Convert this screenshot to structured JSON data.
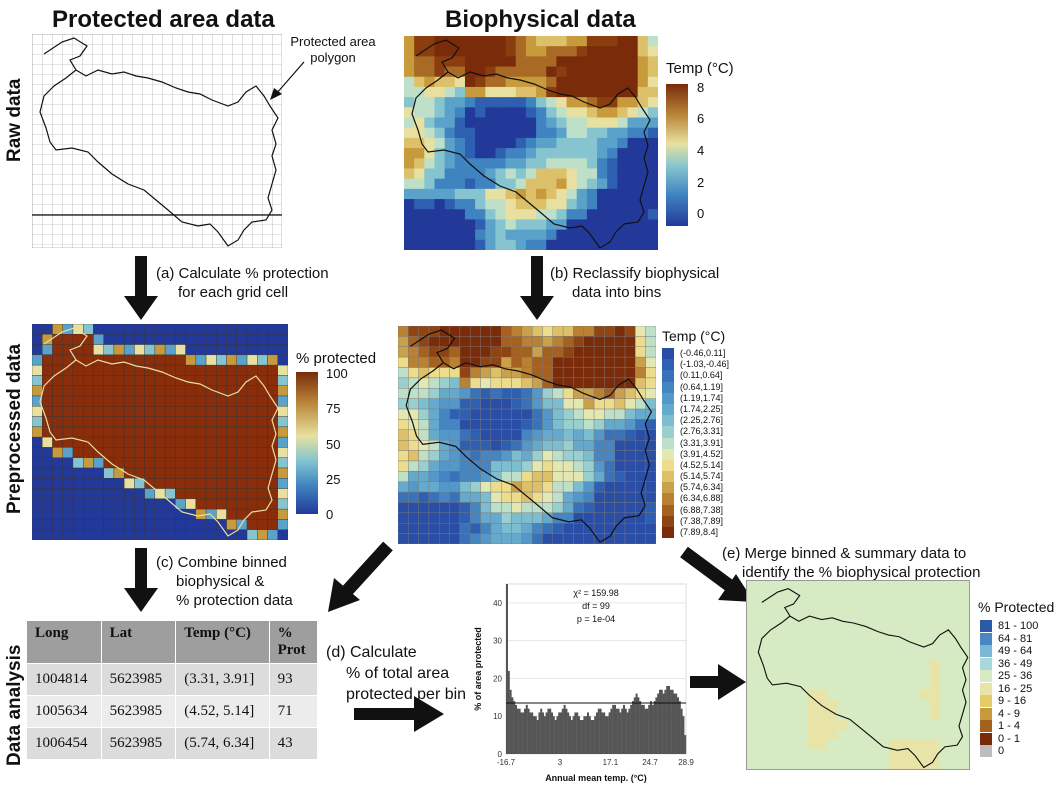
{
  "headers": {
    "left": "Protected area data",
    "right": "Biophysical data"
  },
  "row_labels": {
    "raw": "Raw data",
    "pre": "Preprocessed data",
    "analysis": "Data analysis"
  },
  "annotations": {
    "polygon_line1": "Protected area",
    "polygon_line2": "polygon"
  },
  "steps": {
    "a1": "(a) Calculate % protection",
    "a2": "for each grid cell",
    "b1": "(b) Reclassify biophysical",
    "b2": "data into bins",
    "c1": "(c) Combine binned",
    "c2": "biophysical &",
    "c3": "% protection data",
    "d1": "(d) Calculate",
    "d2": "% of total area",
    "d3": "protected per bin",
    "e1": "(e) Merge binned & summary data to",
    "e2": "identify the % biophysical protection"
  },
  "legend_temp": {
    "title": "Temp (°C)",
    "ticks": [
      "8",
      "6",
      "4",
      "2",
      "0"
    ]
  },
  "legend_protected": {
    "title": "% protected",
    "ticks": [
      "100",
      "75",
      "50",
      "25",
      "0"
    ]
  },
  "legend_bins": {
    "title": "Temp (°C)",
    "items": [
      {
        "label": "(-0.46,0.11]",
        "color": "#2a4ea6"
      },
      {
        "label": "(-1.03,-0.46]",
        "color": "#2f5fb0"
      },
      {
        "label": "(0.11,0.64]",
        "color": "#3a72ba"
      },
      {
        "label": "(0.64,1.19]",
        "color": "#4585c2"
      },
      {
        "label": "(1.19,1.74]",
        "color": "#5498c9"
      },
      {
        "label": "(1.74,2.25]",
        "color": "#65aacd"
      },
      {
        "label": "(2.25,2.76]",
        "color": "#7dbdd0"
      },
      {
        "label": "(2.76,3.31]",
        "color": "#9acfd0"
      },
      {
        "label": "(3.31,3.91]",
        "color": "#bfe0c8"
      },
      {
        "label": "(3.91,4.52]",
        "color": "#e3e8b3"
      },
      {
        "label": "(4.52,5.14]",
        "color": "#ecdc8c"
      },
      {
        "label": "(5.14,5.74]",
        "color": "#ddc06a"
      },
      {
        "label": "(5.74,6.34]",
        "color": "#c9a04c"
      },
      {
        "label": "(6.34,6.88]",
        "color": "#b88134"
      },
      {
        "label": "(6.88,7.38]",
        "color": "#a4611f"
      },
      {
        "label": "(7.38,7.89]",
        "color": "#8f4413"
      },
      {
        "label": "(7.89,8.4]",
        "color": "#7a2c0a"
      }
    ]
  },
  "legend_final": {
    "title": "% Protected",
    "items": [
      {
        "label": "81 - 100",
        "color": "#2b5aa8"
      },
      {
        "label": "64 - 81",
        "color": "#4a86c3"
      },
      {
        "label": "49 - 64",
        "color": "#7bb6d6"
      },
      {
        "label": "36 - 49",
        "color": "#a8d8dc"
      },
      {
        "label": "25 - 36",
        "color": "#d6ebc4"
      },
      {
        "label": "16 - 25",
        "color": "#e8e4a8"
      },
      {
        "label": "9 - 16",
        "color": "#e3cc6a"
      },
      {
        "label": "4 - 9",
        "color": "#c79a3c"
      },
      {
        "label": "1 - 4",
        "color": "#a2611c"
      },
      {
        "label": "0 - 1",
        "color": "#7a2a0a"
      },
      {
        "label": "0",
        "color": "#bdbdbd"
      }
    ]
  },
  "table": {
    "headers": [
      "Long",
      "Lat",
      "Temp (°C)",
      "%\nProt"
    ],
    "rows": [
      [
        "1004814",
        "5623985",
        "(3.31, 3.91]",
        "93"
      ],
      [
        "1005634",
        "5623985",
        "(4.52, 5.14]",
        "71"
      ],
      [
        "1006454",
        "5623985",
        "(5.74, 6.34]",
        "43"
      ]
    ]
  },
  "histogram": {
    "stat_chi": "χ² = 159.98",
    "stat_df": "df = 99",
    "stat_p": "p = 1e-04",
    "ylabel": "% of area protected",
    "xlabel": "Annual mean temp. (°C)",
    "yticks": [
      "40",
      "30",
      "20",
      "10",
      "0"
    ],
    "xticks": [
      "-16.7",
      "3",
      "17.1",
      "24.7",
      "28.9"
    ]
  },
  "chart_data": {
    "type": "bar",
    "title": "",
    "xlabel": "Annual mean temp. (°C)",
    "ylabel": "% of area protected",
    "ylim": [
      0,
      45
    ],
    "xtick_labels": [
      "-16.7",
      "3",
      "17.1",
      "24.7",
      "28.9"
    ],
    "reference_line": 13.5,
    "values": [
      45,
      22,
      17,
      15,
      14,
      13,
      12,
      12,
      11,
      11,
      12,
      13,
      12,
      11,
      11,
      10,
      10,
      9,
      11,
      12,
      11,
      10,
      11,
      12,
      12,
      11,
      10,
      9,
      10,
      11,
      11,
      12,
      13,
      12,
      11,
      10,
      9,
      10,
      11,
      11,
      10,
      9,
      9,
      10,
      10,
      11,
      10,
      9,
      9,
      10,
      11,
      12,
      12,
      11,
      11,
      10,
      10,
      11,
      12,
      13,
      13,
      12,
      12,
      11,
      12,
      13,
      12,
      11,
      12,
      13,
      14,
      15,
      16,
      15,
      14,
      13,
      13,
      12,
      12,
      13,
      14,
      13,
      14,
      15,
      16,
      17,
      17,
      16,
      17,
      18,
      18,
      17,
      17,
      16,
      16,
      15,
      14,
      12,
      10,
      5
    ]
  }
}
